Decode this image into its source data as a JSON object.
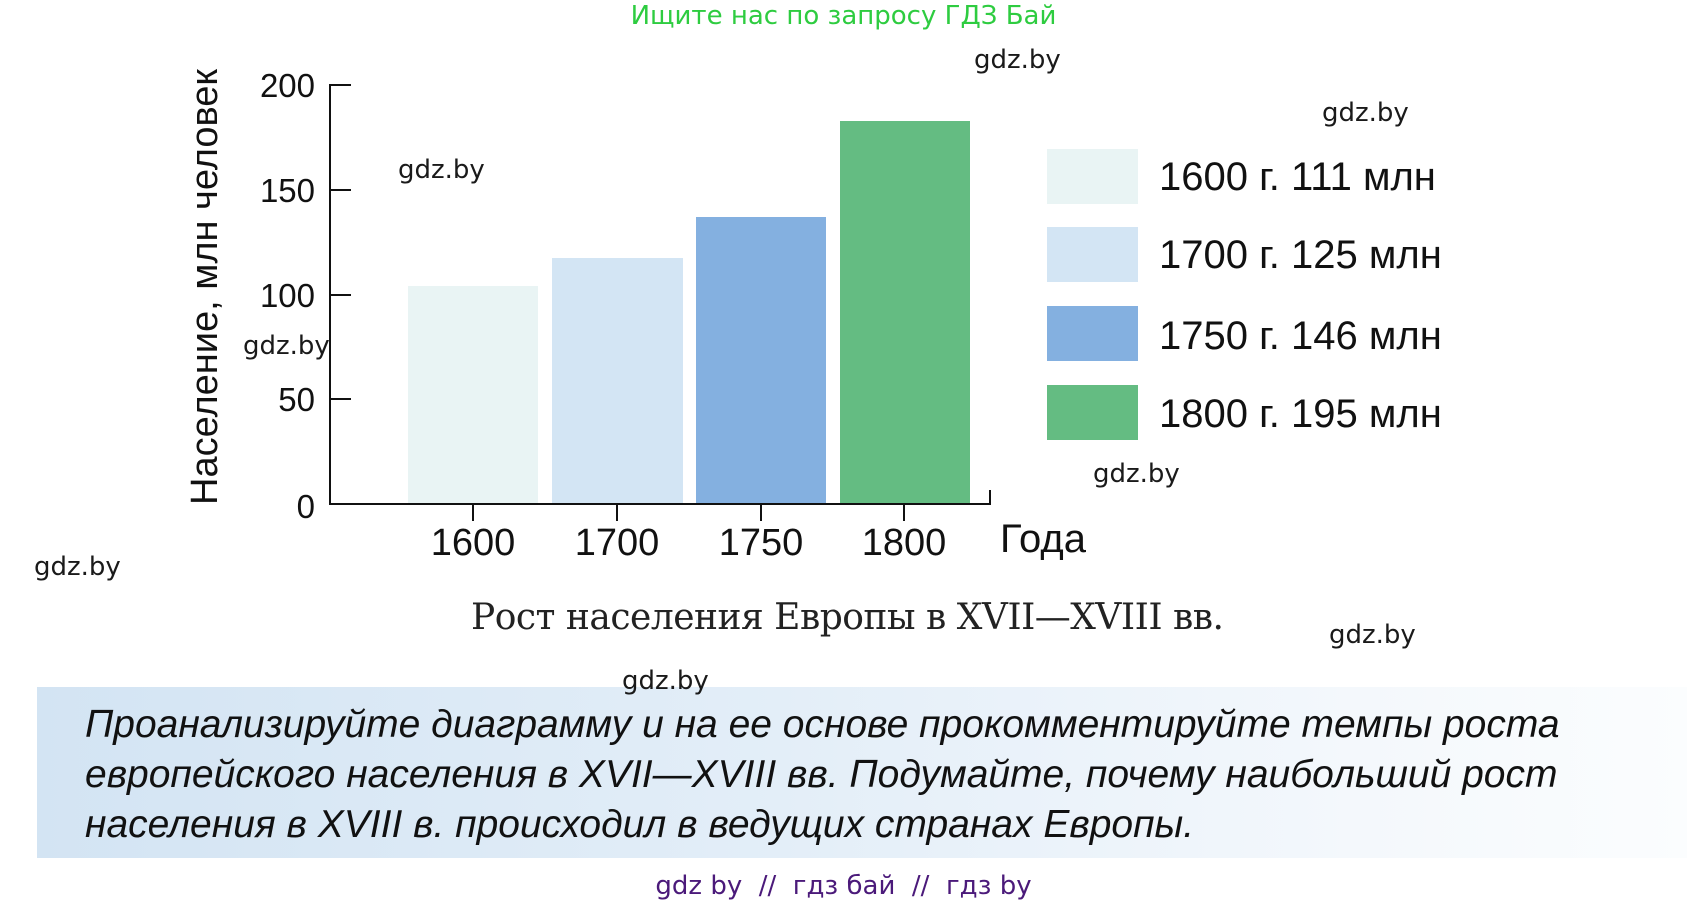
{
  "banner": {
    "top": "Ищите нас по запросу ГДЗ Бай",
    "bottom": "gdz by  //  гдз бай  //  гдз by"
  },
  "watermarks": [
    "gdz.by",
    "gdz.by",
    "gdz.by",
    "gdz.by",
    "gdz.by",
    "gdz.by",
    "gdz.by",
    "gdz.by"
  ],
  "chart_data": {
    "type": "bar",
    "title": "Рост населения Европы в XVII—XVIII вв.",
    "xlabel": "Года",
    "ylabel": "Население, млн человек",
    "categories": [
      "1600",
      "1700",
      "1750",
      "1800"
    ],
    "values": [
      111,
      125,
      146,
      195
    ],
    "colors": [
      "#e9f4f4",
      "#d3e5f4",
      "#84b0e0",
      "#64bc82"
    ],
    "ylim": [
      0,
      200
    ],
    "yticks": [
      "200",
      "150",
      "100",
      "50",
      "0"
    ],
    "grid": false,
    "legend_position": "right",
    "legend": [
      {
        "label": "1600 г. 111 млн",
        "color": "#e9f4f4"
      },
      {
        "label": "1700 г. 125 млн",
        "color": "#d3e5f4"
      },
      {
        "label": "1750 г. 146 млн",
        "color": "#84b0e0"
      },
      {
        "label": "1800 г. 195 млн",
        "color": "#64bc82"
      }
    ]
  },
  "task": {
    "text": "Проанализируйте диаграмму и на ее основе прокомментируйте темпы роста европейского населения в XVII—XVIII вв. Подумайте, почему наибольший рост населения в XVIII в. происходил в ведущих странах Европы."
  }
}
